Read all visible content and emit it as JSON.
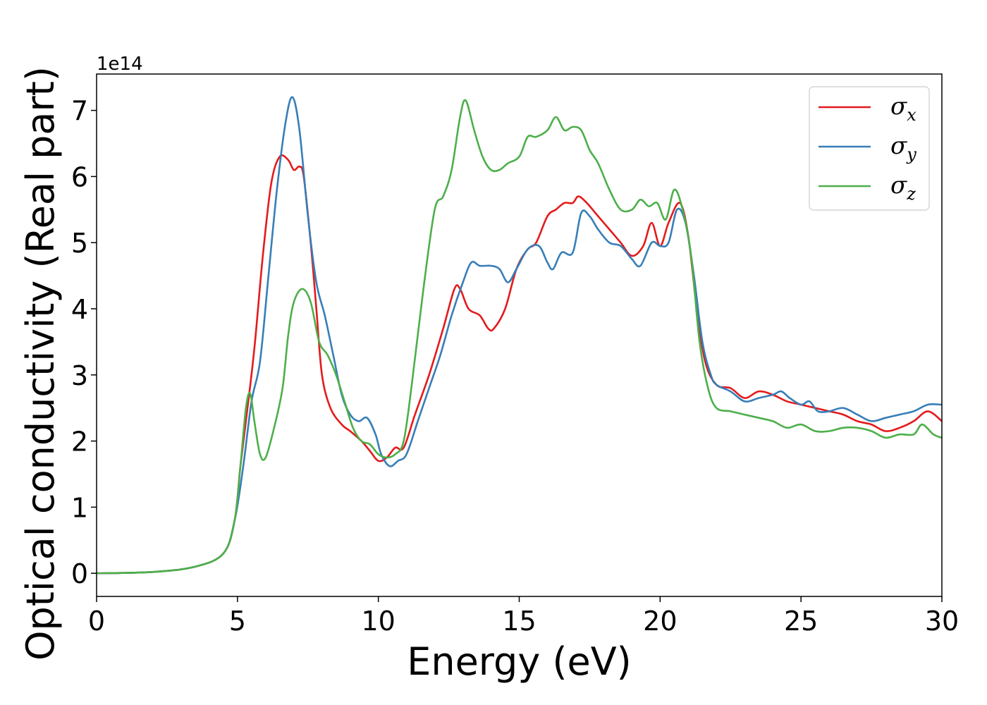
{
  "chart_data": {
    "type": "line",
    "xlabel": "Energy (eV)",
    "ylabel": "Optical conductivity (Real part)",
    "y_offset_text": "1e14",
    "xlim": [
      0,
      30
    ],
    "ylim": [
      -0.35,
      7.55
    ],
    "xticks": [
      0,
      5,
      10,
      15,
      20,
      25,
      30
    ],
    "yticks": [
      0,
      1,
      2,
      3,
      4,
      5,
      6,
      7
    ],
    "grid": false,
    "legend_position": "top-right",
    "series": [
      {
        "name": "σx",
        "symbol": "σ",
        "subscript": "x",
        "color": "#e41a1c",
        "points": [
          [
            0,
            0.0
          ],
          [
            2,
            0.02
          ],
          [
            3.5,
            0.1
          ],
          [
            4.5,
            0.3
          ],
          [
            4.9,
            0.8
          ],
          [
            5.1,
            1.6
          ],
          [
            5.3,
            2.3
          ],
          [
            5.6,
            3.4
          ],
          [
            5.9,
            4.8
          ],
          [
            6.2,
            5.9
          ],
          [
            6.5,
            6.3
          ],
          [
            6.8,
            6.25
          ],
          [
            7.0,
            6.1
          ],
          [
            7.2,
            6.15
          ],
          [
            7.35,
            6.0
          ],
          [
            7.6,
            5.0
          ],
          [
            7.8,
            4.0
          ],
          [
            8.0,
            3.0
          ],
          [
            8.3,
            2.5
          ],
          [
            8.7,
            2.25
          ],
          [
            9.0,
            2.15
          ],
          [
            9.4,
            2.0
          ],
          [
            9.7,
            1.85
          ],
          [
            10.0,
            1.7
          ],
          [
            10.3,
            1.75
          ],
          [
            10.6,
            1.9
          ],
          [
            10.9,
            1.9
          ],
          [
            11.3,
            2.4
          ],
          [
            11.8,
            3.0
          ],
          [
            12.3,
            3.7
          ],
          [
            12.7,
            4.3
          ],
          [
            12.9,
            4.3
          ],
          [
            13.2,
            4.0
          ],
          [
            13.6,
            3.9
          ],
          [
            13.9,
            3.7
          ],
          [
            14.1,
            3.7
          ],
          [
            14.5,
            4.0
          ],
          [
            14.9,
            4.6
          ],
          [
            15.3,
            4.9
          ],
          [
            15.6,
            5.0
          ],
          [
            16.0,
            5.4
          ],
          [
            16.3,
            5.5
          ],
          [
            16.6,
            5.6
          ],
          [
            16.9,
            5.6
          ],
          [
            17.1,
            5.7
          ],
          [
            17.4,
            5.6
          ],
          [
            17.7,
            5.45
          ],
          [
            18.2,
            5.2
          ],
          [
            18.6,
            5.0
          ],
          [
            19.0,
            4.8
          ],
          [
            19.4,
            4.95
          ],
          [
            19.7,
            5.3
          ],
          [
            20.0,
            4.95
          ],
          [
            20.3,
            5.3
          ],
          [
            20.7,
            5.6
          ],
          [
            21.0,
            5.1
          ],
          [
            21.3,
            4.0
          ],
          [
            21.6,
            3.2
          ],
          [
            22.0,
            2.85
          ],
          [
            22.5,
            2.8
          ],
          [
            23.0,
            2.65
          ],
          [
            23.5,
            2.75
          ],
          [
            24.0,
            2.7
          ],
          [
            24.5,
            2.6
          ],
          [
            25.0,
            2.55
          ],
          [
            25.5,
            2.5
          ],
          [
            26.0,
            2.45
          ],
          [
            26.5,
            2.4
          ],
          [
            27.0,
            2.3
          ],
          [
            27.5,
            2.25
          ],
          [
            28.0,
            2.15
          ],
          [
            28.5,
            2.2
          ],
          [
            29.0,
            2.3
          ],
          [
            29.5,
            2.45
          ],
          [
            30.0,
            2.3
          ]
        ]
      },
      {
        "name": "σy",
        "symbol": "σ",
        "subscript": "y",
        "color": "#377eb8",
        "points": [
          [
            0,
            0.0
          ],
          [
            2,
            0.02
          ],
          [
            3.5,
            0.1
          ],
          [
            4.5,
            0.3
          ],
          [
            4.9,
            0.8
          ],
          [
            5.2,
            1.6
          ],
          [
            5.5,
            2.6
          ],
          [
            5.8,
            3.2
          ],
          [
            6.1,
            4.5
          ],
          [
            6.4,
            5.8
          ],
          [
            6.7,
            6.8
          ],
          [
            6.95,
            7.2
          ],
          [
            7.2,
            6.7
          ],
          [
            7.5,
            5.4
          ],
          [
            7.8,
            4.4
          ],
          [
            8.1,
            3.9
          ],
          [
            8.4,
            3.3
          ],
          [
            8.7,
            2.7
          ],
          [
            9.0,
            2.4
          ],
          [
            9.3,
            2.3
          ],
          [
            9.6,
            2.35
          ],
          [
            9.9,
            2.1
          ],
          [
            10.1,
            1.8
          ],
          [
            10.4,
            1.62
          ],
          [
            10.7,
            1.7
          ],
          [
            11.0,
            1.8
          ],
          [
            11.4,
            2.3
          ],
          [
            11.8,
            2.8
          ],
          [
            12.2,
            3.3
          ],
          [
            12.6,
            3.9
          ],
          [
            13.0,
            4.4
          ],
          [
            13.3,
            4.7
          ],
          [
            13.6,
            4.65
          ],
          [
            14.0,
            4.65
          ],
          [
            14.3,
            4.6
          ],
          [
            14.6,
            4.4
          ],
          [
            14.9,
            4.6
          ],
          [
            15.3,
            4.9
          ],
          [
            15.7,
            4.95
          ],
          [
            16.0,
            4.7
          ],
          [
            16.2,
            4.6
          ],
          [
            16.5,
            4.85
          ],
          [
            16.9,
            4.85
          ],
          [
            17.2,
            5.45
          ],
          [
            17.5,
            5.4
          ],
          [
            17.8,
            5.2
          ],
          [
            18.2,
            5.0
          ],
          [
            18.6,
            4.95
          ],
          [
            19.0,
            4.75
          ],
          [
            19.3,
            4.65
          ],
          [
            19.7,
            5.0
          ],
          [
            20.0,
            4.95
          ],
          [
            20.3,
            5.0
          ],
          [
            20.6,
            5.5
          ],
          [
            20.9,
            5.3
          ],
          [
            21.2,
            4.5
          ],
          [
            21.5,
            3.5
          ],
          [
            21.8,
            3.0
          ],
          [
            22.0,
            2.85
          ],
          [
            22.5,
            2.75
          ],
          [
            23.0,
            2.6
          ],
          [
            23.5,
            2.65
          ],
          [
            24.0,
            2.7
          ],
          [
            24.3,
            2.75
          ],
          [
            24.6,
            2.65
          ],
          [
            25.0,
            2.55
          ],
          [
            25.3,
            2.6
          ],
          [
            25.6,
            2.45
          ],
          [
            26.0,
            2.45
          ],
          [
            26.5,
            2.5
          ],
          [
            27.0,
            2.4
          ],
          [
            27.5,
            2.3
          ],
          [
            28.0,
            2.35
          ],
          [
            28.5,
            2.4
          ],
          [
            29.0,
            2.45
          ],
          [
            29.5,
            2.55
          ],
          [
            30.0,
            2.55
          ]
        ]
      },
      {
        "name": "σz",
        "symbol": "σ",
        "subscript": "z",
        "color": "#4daf4a",
        "points": [
          [
            0,
            0.0
          ],
          [
            2,
            0.02
          ],
          [
            3.5,
            0.1
          ],
          [
            4.5,
            0.3
          ],
          [
            4.9,
            0.8
          ],
          [
            5.1,
            1.6
          ],
          [
            5.3,
            2.5
          ],
          [
            5.45,
            2.72
          ],
          [
            5.6,
            2.3
          ],
          [
            5.8,
            1.8
          ],
          [
            6.0,
            1.75
          ],
          [
            6.3,
            2.2
          ],
          [
            6.6,
            2.8
          ],
          [
            6.8,
            3.6
          ],
          [
            7.0,
            4.1
          ],
          [
            7.3,
            4.3
          ],
          [
            7.6,
            4.1
          ],
          [
            7.9,
            3.5
          ],
          [
            8.2,
            3.3
          ],
          [
            8.5,
            3.0
          ],
          [
            8.8,
            2.6
          ],
          [
            9.1,
            2.2
          ],
          [
            9.4,
            2.0
          ],
          [
            9.7,
            1.95
          ],
          [
            10.0,
            1.8
          ],
          [
            10.3,
            1.75
          ],
          [
            10.6,
            1.8
          ],
          [
            10.9,
            2.0
          ],
          [
            11.2,
            2.9
          ],
          [
            11.6,
            4.3
          ],
          [
            12.0,
            5.5
          ],
          [
            12.3,
            5.7
          ],
          [
            12.6,
            6.1
          ],
          [
            12.9,
            6.9
          ],
          [
            13.1,
            7.15
          ],
          [
            13.4,
            6.7
          ],
          [
            13.7,
            6.3
          ],
          [
            14.0,
            6.1
          ],
          [
            14.3,
            6.1
          ],
          [
            14.6,
            6.2
          ],
          [
            15.0,
            6.3
          ],
          [
            15.3,
            6.6
          ],
          [
            15.6,
            6.6
          ],
          [
            16.0,
            6.7
          ],
          [
            16.3,
            6.9
          ],
          [
            16.6,
            6.7
          ],
          [
            16.9,
            6.75
          ],
          [
            17.2,
            6.7
          ],
          [
            17.5,
            6.4
          ],
          [
            17.8,
            6.2
          ],
          [
            18.2,
            5.8
          ],
          [
            18.6,
            5.5
          ],
          [
            19.0,
            5.5
          ],
          [
            19.3,
            5.65
          ],
          [
            19.6,
            5.55
          ],
          [
            19.9,
            5.6
          ],
          [
            20.2,
            5.35
          ],
          [
            20.5,
            5.8
          ],
          [
            20.8,
            5.5
          ],
          [
            21.1,
            4.8
          ],
          [
            21.4,
            3.5
          ],
          [
            21.7,
            2.8
          ],
          [
            22.0,
            2.5
          ],
          [
            22.5,
            2.45
          ],
          [
            23.0,
            2.4
          ],
          [
            23.5,
            2.35
          ],
          [
            24.0,
            2.3
          ],
          [
            24.5,
            2.2
          ],
          [
            25.0,
            2.25
          ],
          [
            25.5,
            2.15
          ],
          [
            26.0,
            2.15
          ],
          [
            26.5,
            2.2
          ],
          [
            27.0,
            2.2
          ],
          [
            27.5,
            2.15
          ],
          [
            28.0,
            2.05
          ],
          [
            28.5,
            2.1
          ],
          [
            29.0,
            2.1
          ],
          [
            29.3,
            2.25
          ],
          [
            29.7,
            2.1
          ],
          [
            30.0,
            2.05
          ]
        ]
      }
    ]
  }
}
